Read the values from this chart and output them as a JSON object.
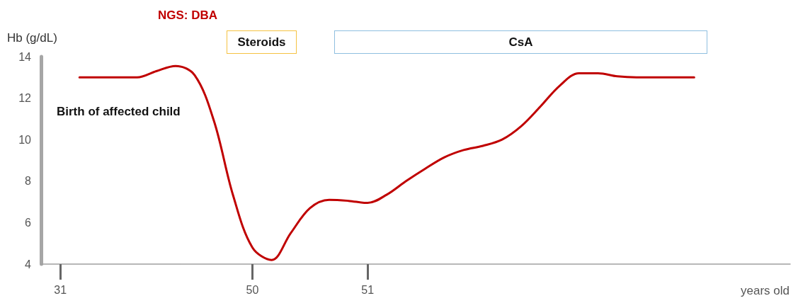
{
  "chart_data": {
    "type": "line",
    "title": "NGS: DBA",
    "ylabel": "Hb (g/dL)",
    "xlabel": "years old",
    "categories": [
      null,
      "31",
      null,
      null,
      null,
      null,
      null,
      null,
      null,
      null,
      null,
      "50",
      null,
      null,
      null,
      null,
      null,
      "51",
      null,
      null,
      null,
      null,
      null,
      null,
      null,
      null,
      null,
      null,
      null,
      null,
      null,
      null,
      null,
      null,
      null,
      null,
      null,
      null,
      null,
      null
    ],
    "series": [
      {
        "color": "#c00000",
        "values": [
          null,
          null,
          13,
          13,
          13,
          13,
          13.3,
          13.55,
          13.1,
          10.9,
          7.3,
          4.8,
          4.2,
          5.5,
          6.7,
          7.1,
          7.05,
          6.95,
          7.35,
          8.0,
          8.6,
          9.15,
          9.5,
          9.7,
          10.0,
          10.65,
          11.6,
          12.6,
          13.2,
          13.2,
          13.05,
          13.0,
          13,
          13,
          13,
          null,
          null,
          null,
          null,
          null
        ]
      }
    ],
    "annotations": [
      "Steroids",
      "CsA",
      "Birth of affected child"
    ],
    "ylim": [
      4,
      14
    ],
    "yticks": [
      4,
      6,
      8,
      10,
      12,
      14
    ],
    "grid": false,
    "marker": "none",
    "line_style": "solid"
  }
}
